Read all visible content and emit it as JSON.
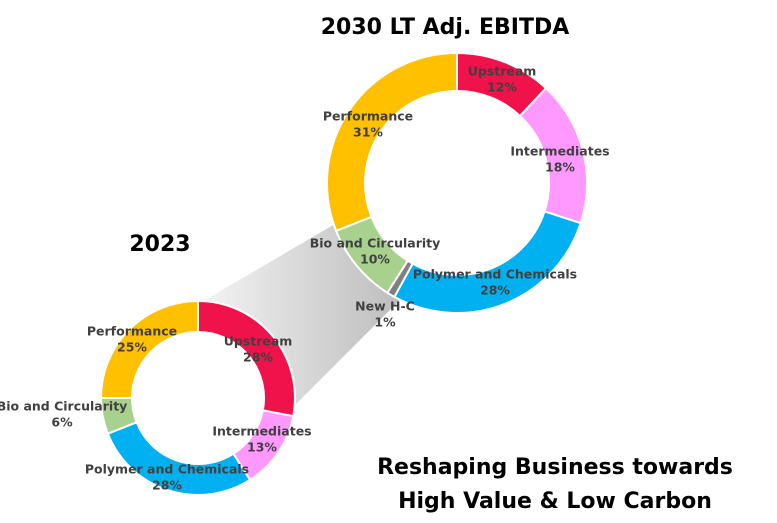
{
  "chart_data": [
    {
      "type": "pie",
      "title": "2030 LT Adj. EBITDA",
      "categories": [
        "Upstream",
        "Intermediates",
        "Polymer and Chemicals",
        "New H-C",
        "Bio and Circularity",
        "Performance"
      ],
      "values": [
        12,
        18,
        28,
        1,
        10,
        31
      ],
      "value_labels": [
        "12%",
        "18%",
        "28%",
        "1%",
        "10%",
        "31%"
      ],
      "colors": [
        "#f0124a",
        "#ff99ff",
        "#00b0f0",
        "#808080",
        "#a9d18e",
        "#ffc000"
      ]
    },
    {
      "type": "pie",
      "title": "2023",
      "categories": [
        "Upstream",
        "Intermediates",
        "Polymer and Chemicals",
        "Bio and Circularity",
        "Performance"
      ],
      "values": [
        28,
        13,
        28,
        6,
        25
      ],
      "value_labels": [
        "28%",
        "13%",
        "28%",
        "6%",
        "25%"
      ],
      "colors": [
        "#f0124a",
        "#ff99ff",
        "#00b0f0",
        "#a9d18e",
        "#ffc000"
      ]
    }
  ],
  "annotation": [
    "Reshaping Business towards",
    "High Value & Low Carbon"
  ]
}
